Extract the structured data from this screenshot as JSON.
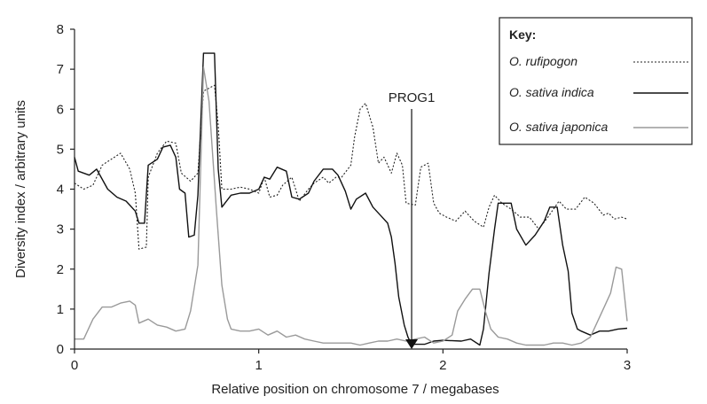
{
  "chart_data": {
    "type": "line",
    "xlabel": "Relative position on chromosome 7 / megabases",
    "ylabel": "Diversity index / arbitrary units",
    "xlim": [
      0,
      3
    ],
    "ylim": [
      0,
      8
    ],
    "x_ticks": [
      0,
      1,
      2,
      3
    ],
    "y_ticks": [
      0,
      1,
      2,
      3,
      4,
      5,
      6,
      7,
      8
    ],
    "grid": false,
    "legend": {
      "title": "Key:",
      "placement": "top-right"
    },
    "annotation": {
      "label": "PROG1",
      "x": 1.83,
      "marker": "triangle-down"
    },
    "series": [
      {
        "name": "O. rufipogon",
        "style": "dotted",
        "color": "#222222",
        "points": [
          [
            0.0,
            4.15
          ],
          [
            0.05,
            4.0
          ],
          [
            0.1,
            4.1
          ],
          [
            0.15,
            4.6
          ],
          [
            0.2,
            4.75
          ],
          [
            0.25,
            4.9
          ],
          [
            0.3,
            4.5
          ],
          [
            0.33,
            3.9
          ],
          [
            0.35,
            2.5
          ],
          [
            0.39,
            2.55
          ],
          [
            0.4,
            4.3
          ],
          [
            0.45,
            4.9
          ],
          [
            0.5,
            5.2
          ],
          [
            0.55,
            5.15
          ],
          [
            0.58,
            4.4
          ],
          [
            0.63,
            4.2
          ],
          [
            0.67,
            4.4
          ],
          [
            0.7,
            6.45
          ],
          [
            0.76,
            6.6
          ],
          [
            0.78,
            5.6
          ],
          [
            0.8,
            4.0
          ],
          [
            0.85,
            4.0
          ],
          [
            0.9,
            4.05
          ],
          [
            0.95,
            4.0
          ],
          [
            1.0,
            3.9
          ],
          [
            1.03,
            4.3
          ],
          [
            1.06,
            3.8
          ],
          [
            1.1,
            3.85
          ],
          [
            1.13,
            4.1
          ],
          [
            1.18,
            4.3
          ],
          [
            1.22,
            3.7
          ],
          [
            1.27,
            4.0
          ],
          [
            1.3,
            4.15
          ],
          [
            1.35,
            4.3
          ],
          [
            1.38,
            4.15
          ],
          [
            1.42,
            4.3
          ],
          [
            1.45,
            4.3
          ],
          [
            1.5,
            4.6
          ],
          [
            1.52,
            5.3
          ],
          [
            1.55,
            6.0
          ],
          [
            1.58,
            6.15
          ],
          [
            1.62,
            5.55
          ],
          [
            1.65,
            4.65
          ],
          [
            1.68,
            4.8
          ],
          [
            1.72,
            4.4
          ],
          [
            1.75,
            4.9
          ],
          [
            1.78,
            4.6
          ],
          [
            1.8,
            3.65
          ],
          [
            1.85,
            3.6
          ],
          [
            1.88,
            4.55
          ],
          [
            1.92,
            4.65
          ],
          [
            1.95,
            3.65
          ],
          [
            1.98,
            3.4
          ],
          [
            2.02,
            3.3
          ],
          [
            2.07,
            3.2
          ],
          [
            2.12,
            3.45
          ],
          [
            2.17,
            3.2
          ],
          [
            2.22,
            3.05
          ],
          [
            2.25,
            3.55
          ],
          [
            2.28,
            3.85
          ],
          [
            2.32,
            3.65
          ],
          [
            2.37,
            3.5
          ],
          [
            2.42,
            3.3
          ],
          [
            2.47,
            3.3
          ],
          [
            2.52,
            3.0
          ],
          [
            2.57,
            3.3
          ],
          [
            2.6,
            3.5
          ],
          [
            2.63,
            3.7
          ],
          [
            2.67,
            3.5
          ],
          [
            2.72,
            3.5
          ],
          [
            2.77,
            3.8
          ],
          [
            2.82,
            3.65
          ],
          [
            2.87,
            3.35
          ],
          [
            2.9,
            3.4
          ],
          [
            2.93,
            3.25
          ],
          [
            2.97,
            3.3
          ],
          [
            3.0,
            3.25
          ]
        ]
      },
      {
        "name": "O. sativa indica",
        "style": "solid",
        "color": "#111111",
        "points": [
          [
            0.0,
            4.8
          ],
          [
            0.02,
            4.45
          ],
          [
            0.08,
            4.35
          ],
          [
            0.12,
            4.5
          ],
          [
            0.18,
            4.0
          ],
          [
            0.23,
            3.8
          ],
          [
            0.28,
            3.7
          ],
          [
            0.3,
            3.6
          ],
          [
            0.33,
            3.45
          ],
          [
            0.35,
            3.15
          ],
          [
            0.38,
            3.15
          ],
          [
            0.4,
            4.6
          ],
          [
            0.45,
            4.75
          ],
          [
            0.48,
            5.05
          ],
          [
            0.52,
            5.1
          ],
          [
            0.55,
            4.8
          ],
          [
            0.57,
            4.0
          ],
          [
            0.6,
            3.9
          ],
          [
            0.62,
            2.8
          ],
          [
            0.65,
            2.85
          ],
          [
            0.67,
            3.85
          ],
          [
            0.7,
            7.4
          ],
          [
            0.76,
            7.4
          ],
          [
            0.78,
            4.5
          ],
          [
            0.8,
            3.55
          ],
          [
            0.85,
            3.85
          ],
          [
            0.9,
            3.9
          ],
          [
            0.95,
            3.9
          ],
          [
            1.0,
            4.0
          ],
          [
            1.03,
            4.3
          ],
          [
            1.06,
            4.25
          ],
          [
            1.1,
            4.55
          ],
          [
            1.15,
            4.45
          ],
          [
            1.18,
            3.8
          ],
          [
            1.22,
            3.75
          ],
          [
            1.27,
            3.9
          ],
          [
            1.3,
            4.2
          ],
          [
            1.35,
            4.5
          ],
          [
            1.4,
            4.5
          ],
          [
            1.43,
            4.35
          ],
          [
            1.47,
            3.95
          ],
          [
            1.5,
            3.5
          ],
          [
            1.53,
            3.75
          ],
          [
            1.58,
            3.9
          ],
          [
            1.62,
            3.55
          ],
          [
            1.66,
            3.35
          ],
          [
            1.7,
            3.15
          ],
          [
            1.72,
            2.8
          ],
          [
            1.74,
            2.15
          ],
          [
            1.76,
            1.3
          ],
          [
            1.79,
            0.6
          ],
          [
            1.81,
            0.3
          ],
          [
            1.83,
            0.12
          ],
          [
            1.9,
            0.12
          ],
          [
            1.95,
            0.2
          ],
          [
            2.0,
            0.22
          ],
          [
            2.1,
            0.2
          ],
          [
            2.15,
            0.25
          ],
          [
            2.2,
            0.1
          ],
          [
            2.22,
            0.5
          ],
          [
            2.25,
            1.9
          ],
          [
            2.28,
            3.0
          ],
          [
            2.3,
            3.65
          ],
          [
            2.37,
            3.65
          ],
          [
            2.4,
            3.0
          ],
          [
            2.45,
            2.6
          ],
          [
            2.5,
            2.85
          ],
          [
            2.55,
            3.2
          ],
          [
            2.58,
            3.55
          ],
          [
            2.62,
            3.55
          ],
          [
            2.65,
            2.6
          ],
          [
            2.68,
            1.95
          ],
          [
            2.7,
            0.9
          ],
          [
            2.73,
            0.5
          ],
          [
            2.75,
            0.45
          ],
          [
            2.8,
            0.35
          ],
          [
            2.85,
            0.45
          ],
          [
            2.9,
            0.45
          ],
          [
            2.95,
            0.5
          ],
          [
            3.0,
            0.52
          ]
        ]
      },
      {
        "name": "O. sativa japonica",
        "style": "solid",
        "color": "#9a9a9a",
        "points": [
          [
            0.0,
            0.25
          ],
          [
            0.05,
            0.25
          ],
          [
            0.1,
            0.75
          ],
          [
            0.15,
            1.05
          ],
          [
            0.2,
            1.05
          ],
          [
            0.25,
            1.15
          ],
          [
            0.3,
            1.2
          ],
          [
            0.33,
            1.1
          ],
          [
            0.35,
            0.65
          ],
          [
            0.4,
            0.75
          ],
          [
            0.45,
            0.6
          ],
          [
            0.5,
            0.55
          ],
          [
            0.55,
            0.45
          ],
          [
            0.6,
            0.5
          ],
          [
            0.63,
            0.95
          ],
          [
            0.67,
            2.1
          ],
          [
            0.7,
            7.05
          ],
          [
            0.73,
            6.2
          ],
          [
            0.77,
            3.5
          ],
          [
            0.8,
            1.6
          ],
          [
            0.83,
            0.75
          ],
          [
            0.85,
            0.5
          ],
          [
            0.9,
            0.45
          ],
          [
            0.95,
            0.45
          ],
          [
            1.0,
            0.5
          ],
          [
            1.05,
            0.35
          ],
          [
            1.1,
            0.45
          ],
          [
            1.15,
            0.3
          ],
          [
            1.2,
            0.35
          ],
          [
            1.25,
            0.25
          ],
          [
            1.3,
            0.2
          ],
          [
            1.35,
            0.15
          ],
          [
            1.4,
            0.15
          ],
          [
            1.45,
            0.15
          ],
          [
            1.5,
            0.15
          ],
          [
            1.55,
            0.1
          ],
          [
            1.6,
            0.15
          ],
          [
            1.65,
            0.2
          ],
          [
            1.7,
            0.2
          ],
          [
            1.75,
            0.25
          ],
          [
            1.8,
            0.2
          ],
          [
            1.85,
            0.25
          ],
          [
            1.9,
            0.3
          ],
          [
            1.95,
            0.15
          ],
          [
            2.0,
            0.2
          ],
          [
            2.05,
            0.35
          ],
          [
            2.08,
            0.95
          ],
          [
            2.12,
            1.25
          ],
          [
            2.16,
            1.5
          ],
          [
            2.2,
            1.5
          ],
          [
            2.23,
            0.95
          ],
          [
            2.26,
            0.5
          ],
          [
            2.3,
            0.3
          ],
          [
            2.35,
            0.25
          ],
          [
            2.4,
            0.15
          ],
          [
            2.45,
            0.1
          ],
          [
            2.5,
            0.1
          ],
          [
            2.55,
            0.1
          ],
          [
            2.6,
            0.15
          ],
          [
            2.65,
            0.15
          ],
          [
            2.7,
            0.1
          ],
          [
            2.75,
            0.15
          ],
          [
            2.8,
            0.3
          ],
          [
            2.85,
            0.8
          ],
          [
            2.88,
            1.1
          ],
          [
            2.91,
            1.4
          ],
          [
            2.94,
            2.05
          ],
          [
            2.97,
            2.0
          ],
          [
            3.0,
            0.7
          ]
        ]
      }
    ]
  }
}
